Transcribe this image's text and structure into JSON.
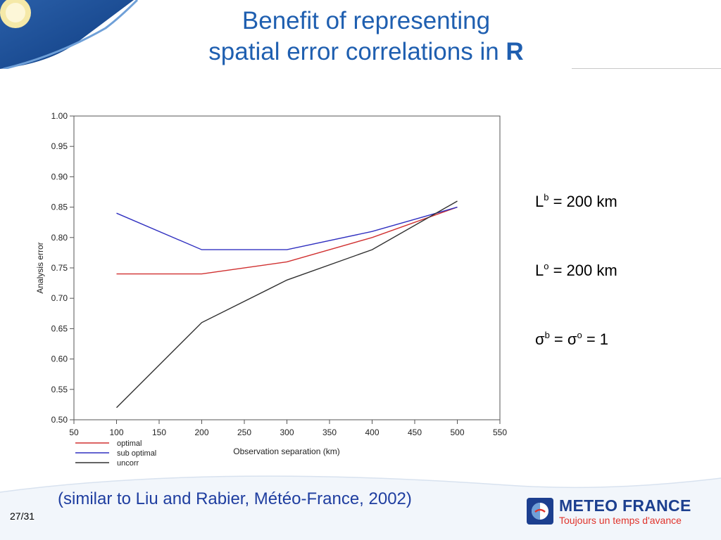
{
  "slide": {
    "title_line1": "Benefit of representing",
    "title_line2_prefix": "spatial error correlations in ",
    "title_line2_bold": "R",
    "params": [
      {
        "sym": "L",
        "sup": "b",
        "rest": " = 200 km"
      },
      {
        "sym": "L",
        "sup": "o",
        "rest": " = 200 km"
      }
    ],
    "sigma": {
      "sym1": "σ",
      "sup1": "b",
      "mid": " = ",
      "sym2": "σ",
      "sup2": "o",
      "rest": " = 1"
    },
    "citation": "(similar to Liu and Rabier, Météo-France, 2002)",
    "page_number": "27/31",
    "logo": {
      "name": "METEO FRANCE",
      "tagline": "Toujours un temps d'avance"
    }
  },
  "chart_data": {
    "type": "line",
    "xlabel": "Observation separation (km)",
    "ylabel": "Analysis error",
    "xlim": [
      50,
      550
    ],
    "ylim": [
      0.5,
      1.0
    ],
    "x_ticks": [
      50,
      100,
      150,
      200,
      250,
      300,
      350,
      400,
      450,
      500,
      550
    ],
    "y_ticks": [
      0.5,
      0.55,
      0.6,
      0.65,
      0.7,
      0.75,
      0.8,
      0.85,
      0.9,
      0.95,
      1.0
    ],
    "grid": false,
    "legend_position": "bottom-left",
    "x": [
      100,
      200,
      300,
      400,
      500
    ],
    "series": [
      {
        "name": "optimal",
        "color": "#d03030",
        "values": [
          0.74,
          0.74,
          0.76,
          0.8,
          0.85
        ]
      },
      {
        "name": "sub optimal",
        "color": "#3030c0",
        "values": [
          0.84,
          0.78,
          0.78,
          0.81,
          0.85
        ]
      },
      {
        "name": "uncorr",
        "color": "#303030",
        "values": [
          0.52,
          0.66,
          0.73,
          0.78,
          0.86
        ]
      }
    ]
  }
}
